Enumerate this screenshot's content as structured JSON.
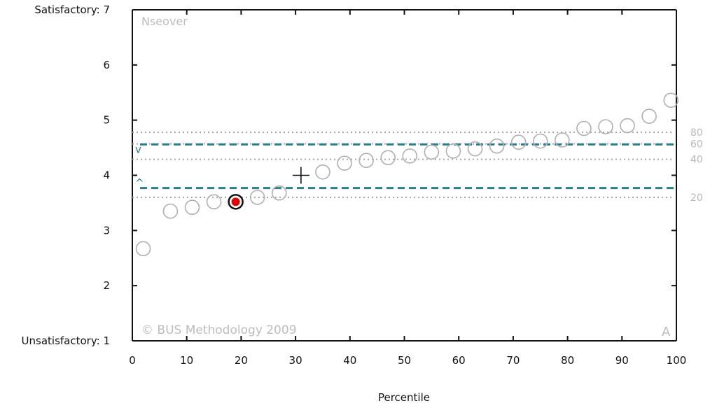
{
  "chart_data": {
    "type": "scatter",
    "title": "Nseover",
    "watermark": "© BUS Methodology 2009",
    "corner_label": "A",
    "xlabel": "Percentile",
    "xlim": [
      0,
      100
    ],
    "ylim": [
      1,
      7
    ],
    "x_ticks": [
      0,
      10,
      20,
      30,
      40,
      50,
      60,
      70,
      80,
      90,
      100
    ],
    "y_tick_labels": [
      {
        "value": 7,
        "label": "Satisfactory: 7"
      },
      {
        "value": 6,
        "label": "6"
      },
      {
        "value": 5,
        "label": "5"
      },
      {
        "value": 4,
        "label": "4"
      },
      {
        "value": 3,
        "label": "3"
      },
      {
        "value": 2,
        "label": "2"
      },
      {
        "value": 1,
        "label": "Unsatisfactory: 1"
      }
    ],
    "points": [
      {
        "x": 2,
        "y": 2.67
      },
      {
        "x": 7,
        "y": 3.35
      },
      {
        "x": 11,
        "y": 3.42
      },
      {
        "x": 15,
        "y": 3.52
      },
      {
        "x": 19,
        "y": 3.52,
        "highlighted": true
      },
      {
        "x": 23,
        "y": 3.6
      },
      {
        "x": 27,
        "y": 3.68
      },
      {
        "x": 35,
        "y": 4.06
      },
      {
        "x": 39,
        "y": 4.22
      },
      {
        "x": 43,
        "y": 4.27
      },
      {
        "x": 47,
        "y": 4.32
      },
      {
        "x": 51,
        "y": 4.35
      },
      {
        "x": 55,
        "y": 4.42
      },
      {
        "x": 59,
        "y": 4.44
      },
      {
        "x": 63,
        "y": 4.48
      },
      {
        "x": 67,
        "y": 4.53
      },
      {
        "x": 71,
        "y": 4.6
      },
      {
        "x": 75,
        "y": 4.62
      },
      {
        "x": 79,
        "y": 4.64
      },
      {
        "x": 83,
        "y": 4.85
      },
      {
        "x": 87,
        "y": 4.88
      },
      {
        "x": 91,
        "y": 4.9
      },
      {
        "x": 95,
        "y": 5.07
      },
      {
        "x": 99,
        "y": 5.36
      }
    ],
    "mean_marker": {
      "x": 31,
      "y": 4.0
    },
    "percentile_lines": [
      {
        "label": "80",
        "y": 4.78
      },
      {
        "label": "60",
        "y": 4.57
      },
      {
        "label": "40",
        "y": 4.29
      },
      {
        "label": "20",
        "y": 3.6
      }
    ],
    "threshold_lines": [
      {
        "y": 4.56,
        "marker": "v"
      },
      {
        "y": 3.77,
        "marker": "^"
      }
    ],
    "colors": {
      "point_outline": "#b0b0b0",
      "highlight_fill": "#e00000",
      "highlight_ring": "#111111",
      "threshold_line": "#2e7d8c",
      "percentile_line": "#a8a8a8",
      "axis": "#111111"
    }
  }
}
